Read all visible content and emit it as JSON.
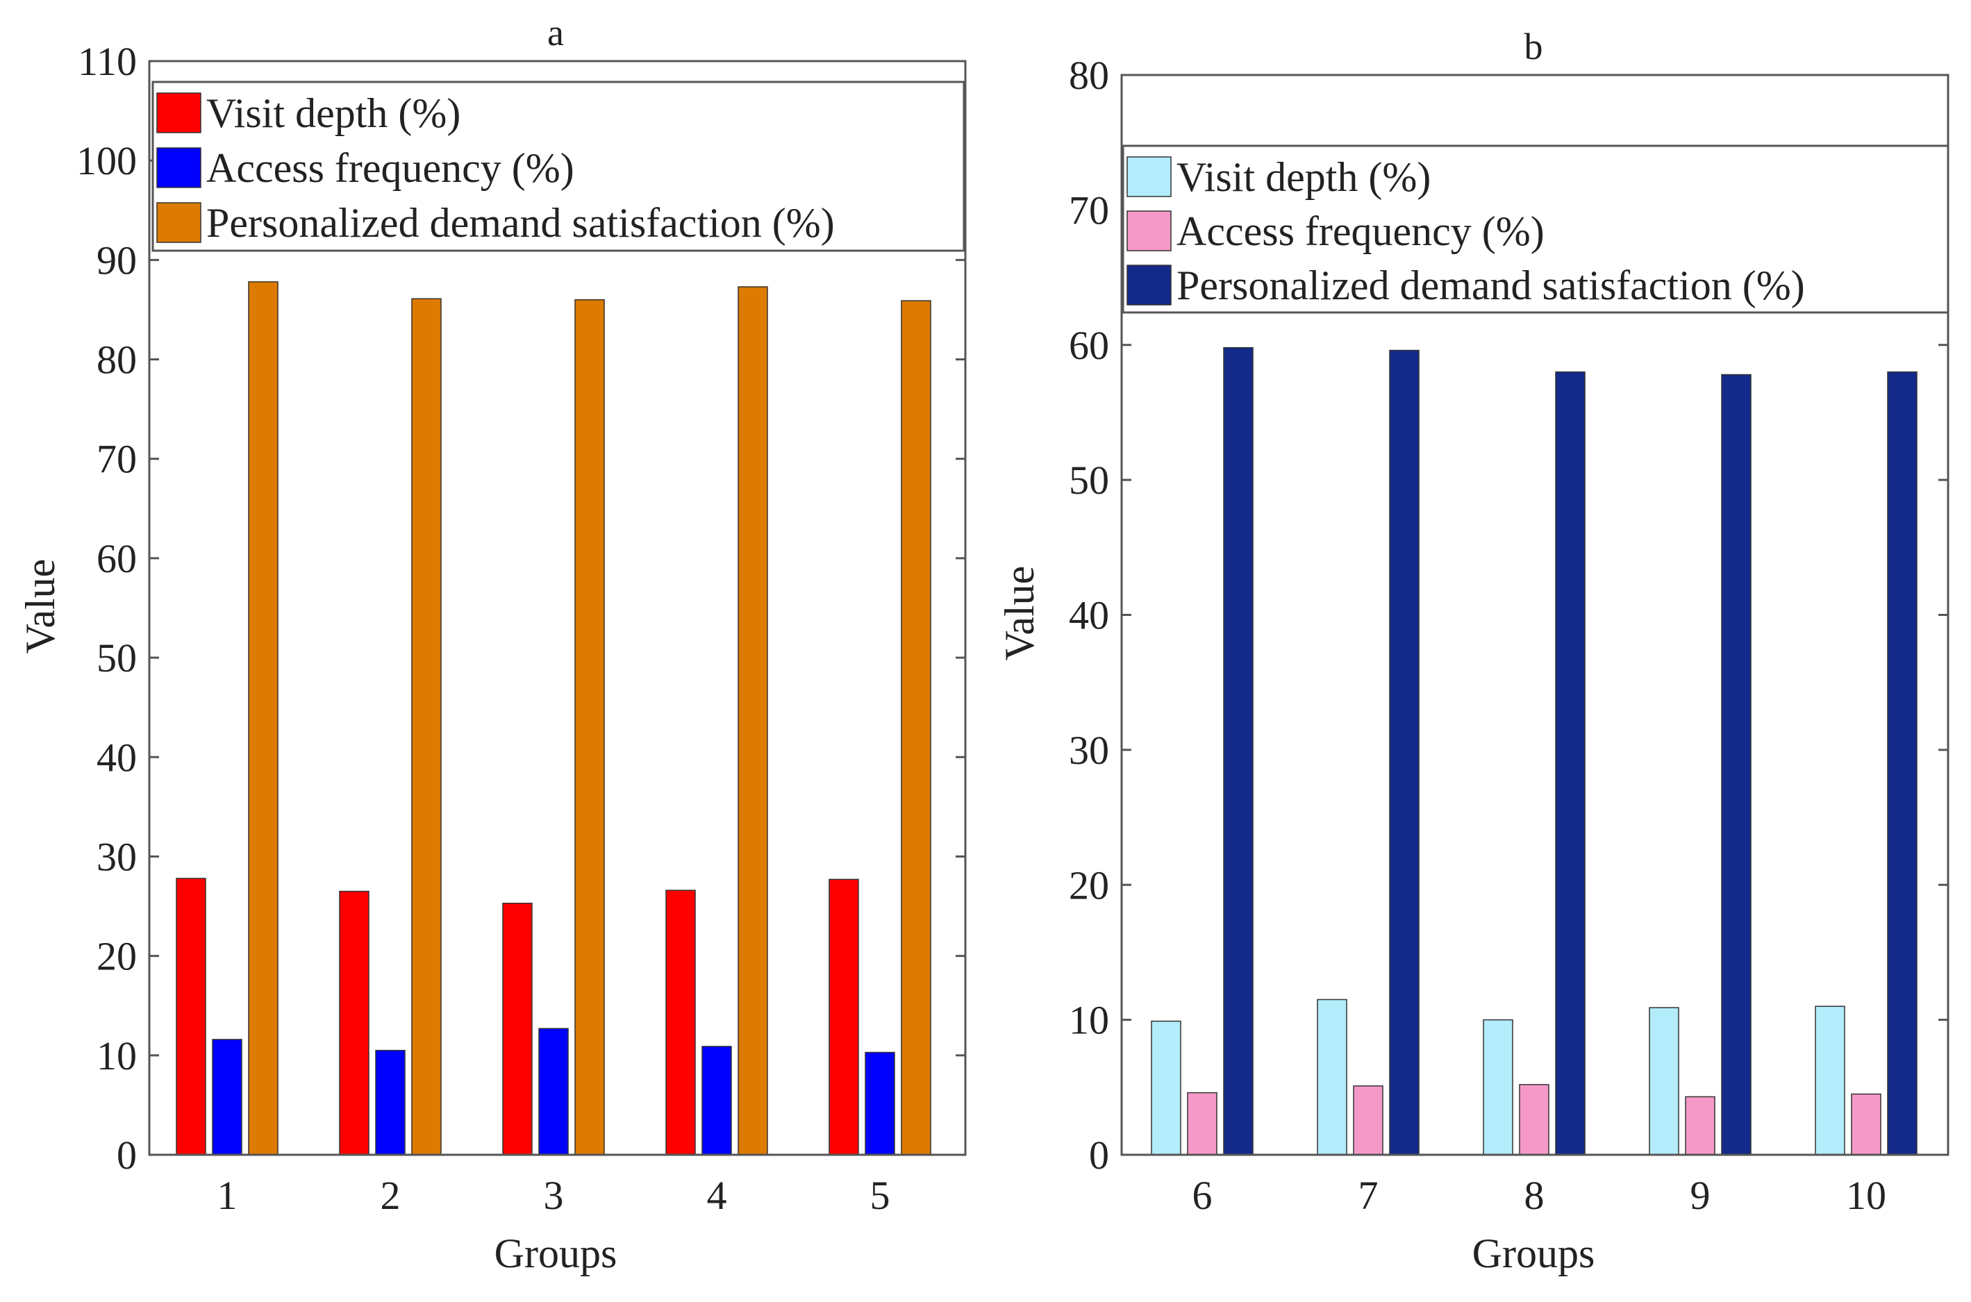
{
  "chart_data": [
    {
      "panel": "a",
      "type": "bar",
      "title": "a",
      "xlabel": "Groups",
      "ylabel": "Value",
      "ylim": [
        0,
        110
      ],
      "yticks": [
        0,
        10,
        20,
        30,
        40,
        50,
        60,
        70,
        80,
        90,
        100,
        110
      ],
      "categories": [
        "1",
        "2",
        "3",
        "4",
        "5"
      ],
      "series": [
        {
          "name": "Visit depth (%)",
          "color": "#ff0000",
          "values": [
            27.8,
            26.5,
            25.3,
            26.6,
            27.7
          ]
        },
        {
          "name": "Access frequency (%)",
          "color": "#0000ff",
          "values": [
            11.6,
            10.5,
            12.7,
            10.9,
            10.3
          ]
        },
        {
          "name": "Personalized demand satisfaction (%)",
          "color": "#dd7a00",
          "values": [
            87.8,
            86.1,
            86.0,
            87.3,
            85.9
          ]
        }
      ],
      "legend": "top",
      "grid": false
    },
    {
      "panel": "b",
      "type": "bar",
      "title": "b",
      "xlabel": "Groups",
      "ylabel": "Value",
      "ylim": [
        0,
        80
      ],
      "yticks": [
        0,
        10,
        20,
        30,
        40,
        50,
        60,
        70,
        80
      ],
      "categories": [
        "6",
        "7",
        "8",
        "9",
        "10"
      ],
      "series": [
        {
          "name": "Visit depth (%)",
          "color": "#b3ecfa",
          "values": [
            9.9,
            11.5,
            10.0,
            10.9,
            11.0
          ]
        },
        {
          "name": "Access frequency (%)",
          "color": "#f59ac8",
          "values": [
            4.6,
            5.1,
            5.2,
            4.3,
            4.5
          ]
        },
        {
          "name": "Personalized demand satisfaction (%)",
          "color": "#132a8a",
          "values": [
            59.8,
            59.6,
            58.0,
            57.8,
            58.0
          ]
        }
      ],
      "legend": "top",
      "grid": false
    }
  ]
}
